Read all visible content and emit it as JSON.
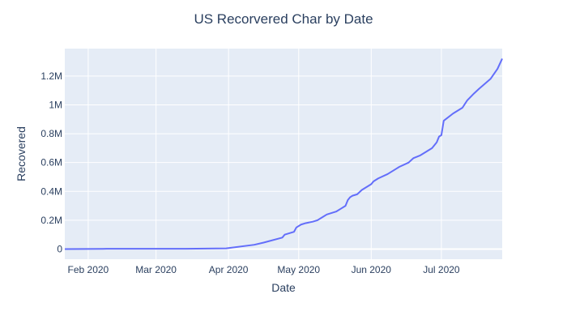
{
  "chart_data": {
    "type": "line",
    "title": "US Recorvered Char by Date",
    "xlabel": "Date",
    "ylabel": "Recovered",
    "x_tick_labels": [
      "Feb 2020",
      "Mar 2020",
      "Apr 2020",
      "May 2020",
      "Jun 2020",
      "Jul 2020"
    ],
    "y_tick_labels": [
      "0",
      "0.2M",
      "0.4M",
      "0.6M",
      "0.8M",
      "1M",
      "1.2M"
    ],
    "ylim": [
      -70000,
      1390000
    ],
    "xlim": [
      "2020-01-22",
      "2020-07-27"
    ],
    "grid": true,
    "colors": {
      "line": "#636efa",
      "plot_bg": "#e5ecf6",
      "grid": "#ffffff",
      "text": "#2a3f5f"
    },
    "series": [
      {
        "x": [
          "2020-01-22",
          "2020-02-09",
          "2020-03-14",
          "2020-03-31",
          "2020-04-12",
          "2020-04-16",
          "2020-04-24",
          "2020-04-25",
          "2020-04-29",
          "2020-04-30",
          "2020-05-02",
          "2020-05-04",
          "2020-05-07",
          "2020-05-09",
          "2020-05-11",
          "2020-05-13",
          "2020-05-17",
          "2020-05-19",
          "2020-05-21",
          "2020-05-22",
          "2020-05-23",
          "2020-05-24",
          "2020-05-26",
          "2020-05-28",
          "2020-06-01",
          "2020-06-02",
          "2020-06-04",
          "2020-06-08",
          "2020-06-12",
          "2020-06-13",
          "2020-06-17",
          "2020-06-19",
          "2020-06-22",
          "2020-06-23",
          "2020-06-27",
          "2020-06-29",
          "2020-06-30",
          "2020-07-01",
          "2020-07-02",
          "2020-07-06",
          "2020-07-10",
          "2020-07-12",
          "2020-07-15",
          "2020-07-17",
          "2020-07-22",
          "2020-07-25",
          "2020-07-27"
        ],
        "y": [
          0,
          2000,
          2000,
          5000,
          30000,
          45000,
          80000,
          100000,
          120000,
          150000,
          170000,
          180000,
          190000,
          200000,
          220000,
          240000,
          260000,
          280000,
          300000,
          340000,
          360000,
          370000,
          380000,
          410000,
          450000,
          470000,
          490000,
          520000,
          560000,
          570000,
          600000,
          630000,
          650000,
          660000,
          700000,
          740000,
          780000,
          790000,
          890000,
          940000,
          980000,
          1030000,
          1080000,
          1110000,
          1180000,
          1250000,
          1320000
        ]
      }
    ]
  }
}
